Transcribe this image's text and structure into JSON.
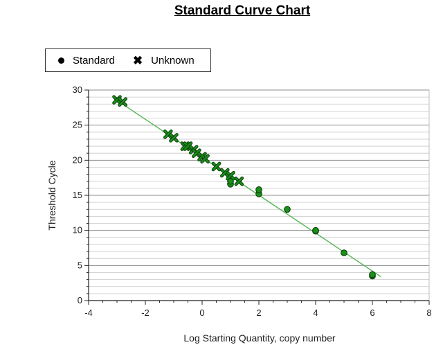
{
  "page": {
    "title": "Standard Curve Chart"
  },
  "chart_data": {
    "type": "scatter",
    "xlabel": "Log Starting Quantity, copy number",
    "ylabel": "Threshold Cycle",
    "xlim": [
      -4,
      8
    ],
    "ylim": [
      0,
      30
    ],
    "xticks": [
      -4,
      -2,
      0,
      2,
      4,
      6,
      8
    ],
    "yticks": [
      0,
      5,
      10,
      15,
      20,
      25,
      30
    ],
    "grid": "horizontal",
    "legend_position": "top-left, above plot",
    "colors": {
      "marker": "#1a8f1a",
      "marker_edge": "#0b3d0b",
      "fit_line": "#52b452",
      "grid": "#9a9a9a"
    },
    "series": [
      {
        "name": "Standard",
        "marker": "circle",
        "points": [
          [
            6.0,
            3.5
          ],
          [
            6.0,
            3.7
          ],
          [
            5.0,
            6.8
          ],
          [
            4.0,
            9.9
          ],
          [
            4.0,
            10.0
          ],
          [
            3.0,
            13.0
          ],
          [
            2.0,
            15.2
          ],
          [
            2.0,
            15.8
          ],
          [
            1.0,
            16.6
          ],
          [
            1.0,
            17.0
          ]
        ]
      },
      {
        "name": "Unknown",
        "marker": "x",
        "points": [
          [
            -3.0,
            28.6
          ],
          [
            -2.8,
            28.3
          ],
          [
            -1.2,
            23.7
          ],
          [
            -1.0,
            23.2
          ],
          [
            -0.6,
            22.0
          ],
          [
            -0.5,
            22.0
          ],
          [
            -0.3,
            21.5
          ],
          [
            -0.2,
            21.0
          ],
          [
            0.0,
            20.5
          ],
          [
            0.1,
            20.2
          ],
          [
            0.5,
            19.1
          ],
          [
            0.8,
            18.2
          ],
          [
            1.0,
            17.8
          ],
          [
            1.3,
            17.0
          ]
        ]
      }
    ],
    "fit_line": {
      "x": [
        -3.1,
        6.3
      ],
      "y": [
        28.8,
        3.4
      ]
    }
  }
}
